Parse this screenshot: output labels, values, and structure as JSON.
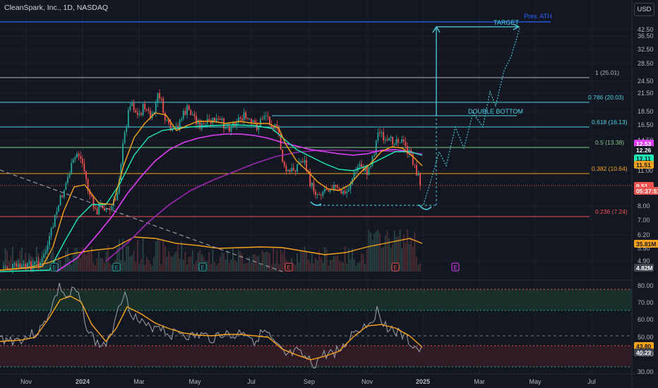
{
  "title": "CleanSpark, Inc., 1D, NASDAQ",
  "currency": "USD",
  "colors": {
    "bg": "#131722",
    "grid": "#1e222d",
    "up": "#26a69a",
    "down": "#ef5350",
    "ema_fast": "#f7a21b",
    "ema_mid": "#1de9b6",
    "ma_purple": "#9c27b0",
    "ma_magenta": "#e040fb",
    "rsi": "#9598a1",
    "rsi_ma": "#f7a21b",
    "fib_line": "#4dd0e1",
    "blue": "#2962ff"
  },
  "price_axis": {
    "ticks": [
      "42.50",
      "36.50",
      "32.50",
      "28.50",
      "24.50",
      "21.50",
      "18.50",
      "16.50",
      "14.50",
      "11.00",
      "8.00",
      "7.00",
      "6.20",
      "5.50",
      "4.90"
    ]
  },
  "price_tags": [
    {
      "text": "12.53",
      "bg": "#e040fb",
      "fg": "#ffffff"
    },
    {
      "text": "12.26",
      "bg": "#131722",
      "fg": "#ffffff"
    },
    {
      "text": "12.11",
      "bg": "#1de9b6",
      "fg": "#131722"
    },
    {
      "text": "11.51",
      "bg": "#f7a21b",
      "fg": "#131722"
    },
    {
      "text": "9.51",
      "bg": "#ef5350",
      "fg": "#ffffff"
    },
    {
      "text": "05:37:51",
      "bg": "#ef5350",
      "fg": "#ffffff"
    },
    {
      "text": "35.81M",
      "bg": "#f7a21b",
      "fg": "#131722"
    },
    {
      "text": "4.82M",
      "bg": "#434651",
      "fg": "#ffffff"
    }
  ],
  "fib_levels": [
    {
      "label": "1 (25.01)",
      "color": "#b2b5be"
    },
    {
      "label": "0.786 (20.03)",
      "color": "#4dd0e1"
    },
    {
      "label": "0.618 (16.13)",
      "color": "#4dd0e1"
    },
    {
      "label": "0.5 (13.38)",
      "color": "#81c784"
    },
    {
      "label": "0.382 (10.64)",
      "color": "#f7a21b"
    },
    {
      "label": "0.236 (7.24)",
      "color": "#ef5350"
    }
  ],
  "annotations": {
    "prev_ath": "Prev. ATH",
    "target": "TARGET",
    "double_bottom": "DOUBLE BOTTOM"
  },
  "earnings_markers": [
    {
      "text": "E",
      "color": "#26a69a"
    },
    {
      "text": "E",
      "color": "#26a69a"
    },
    {
      "text": "E",
      "color": "#26a69a"
    },
    {
      "text": "E",
      "color": "#ef5350"
    },
    {
      "text": "E",
      "color": "#ef5350"
    },
    {
      "text": "E",
      "color": "#e040fb"
    }
  ],
  "rsi_axis": {
    "ticks": [
      "80.00",
      "70.00",
      "60.00",
      "50.00",
      "40.00",
      "30.00"
    ],
    "tags": [
      {
        "text": "43.80",
        "bg": "#f7a21b",
        "fg": "#131722"
      },
      {
        "text": "40.23",
        "bg": "#434651",
        "fg": "#ffffff"
      }
    ]
  },
  "time_axis": [
    "Nov",
    "2024",
    "Mar",
    "May",
    "Jul",
    "Sep",
    "Nov",
    "2025",
    "Mar",
    "May",
    "Jul"
  ]
}
